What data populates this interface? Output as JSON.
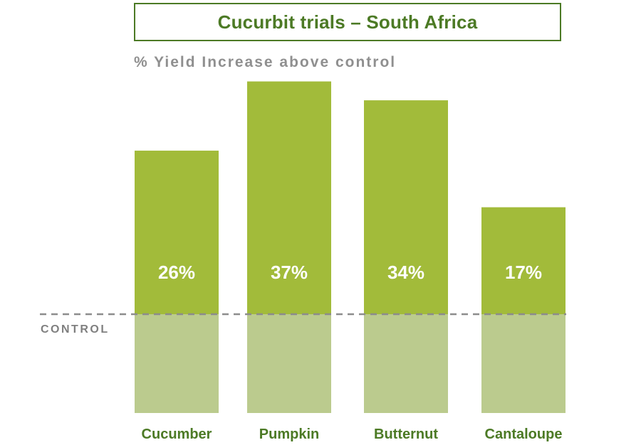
{
  "chart_data": {
    "type": "bar",
    "title": "Cucurbit trials – South Africa",
    "ylabel": "% Yield Increase above control",
    "categories": [
      "Cucumber",
      "Pumpkin",
      "Butternut",
      "Cantaloupe"
    ],
    "values": [
      26,
      37,
      34,
      17
    ],
    "value_labels": [
      "26%",
      "37%",
      "34%",
      "17%"
    ],
    "baseline_label": "CONTROL",
    "legend": "none",
    "grid": false,
    "colors": {
      "increase": "#a2bb3a",
      "control": "#bbcb8e",
      "title": "#4c7a25",
      "subtitle": "#8f8f8f",
      "control_line": "#8c8c8c"
    }
  }
}
